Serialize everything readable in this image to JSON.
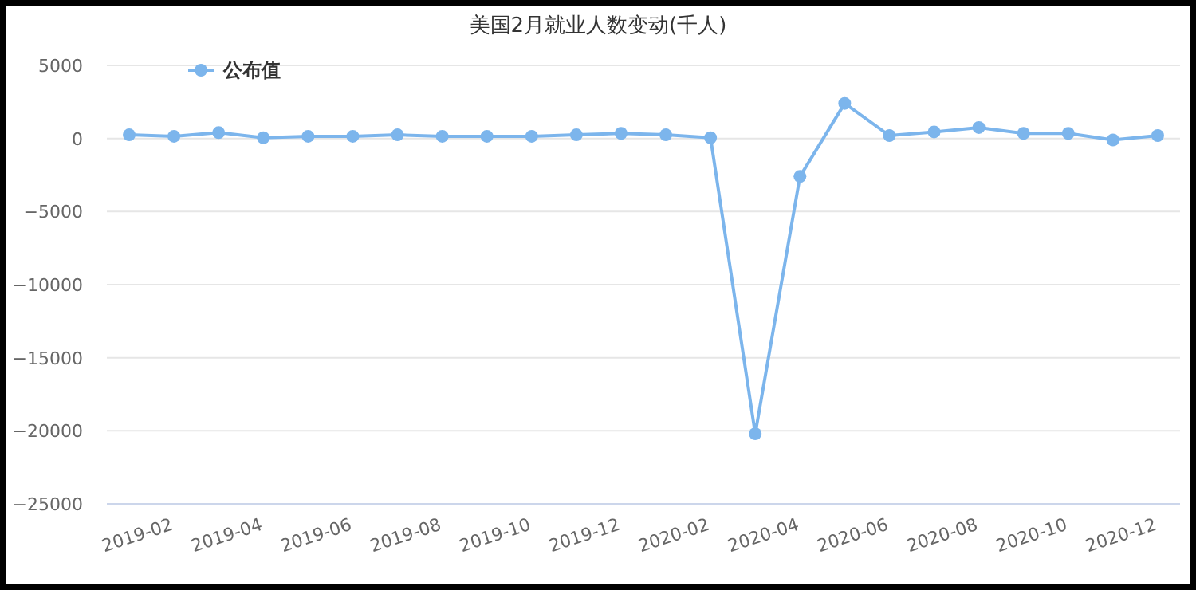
{
  "chart_data": {
    "type": "line",
    "title": "美国2月就业人数变动(千人)",
    "categories": [
      null,
      "2019-02",
      null,
      "2019-04",
      null,
      "2019-06",
      null,
      "2019-08",
      null,
      "2019-10",
      null,
      "2019-12",
      null,
      "2020-02",
      null,
      "2020-04",
      null,
      "2020-06",
      null,
      "2020-08",
      null,
      "2020-10",
      null,
      "2020-12"
    ],
    "series": [
      {
        "name": "公布值",
        "color": "#7cb5ec",
        "values": [
          250,
          150,
          400,
          50,
          150,
          150,
          250,
          150,
          150,
          150,
          250,
          350,
          250,
          50,
          -20200,
          -2600,
          2400,
          200,
          450,
          750,
          350,
          350,
          -100,
          200
        ]
      }
    ],
    "ylim": [
      -25000,
      5000
    ],
    "yticks": [
      -25000,
      -20000,
      -15000,
      -10000,
      -5000,
      0,
      5000
    ],
    "grid": "y",
    "legend": "top left",
    "marker": "circle",
    "line_style": "solid"
  }
}
